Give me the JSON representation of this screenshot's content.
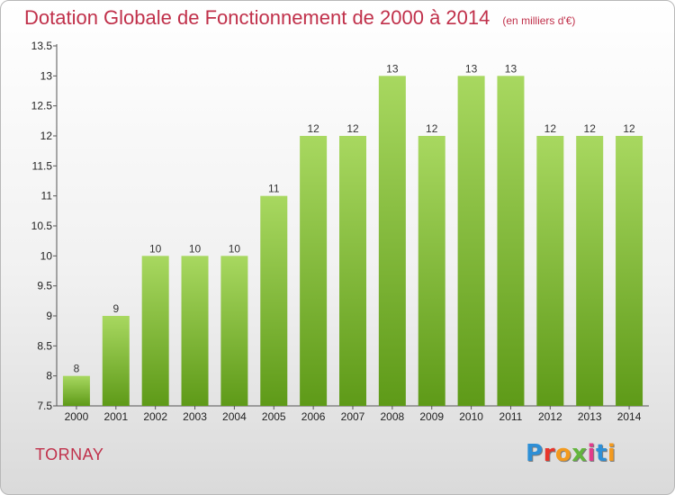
{
  "title": "Dotation Globale de Fonctionnement de 2000 à 2014",
  "subtitle": "(en milliers d'€)",
  "commune": "TORNAY",
  "logo": {
    "text": "Proxiti",
    "colors": [
      "#2e8fd6",
      "#e8352a",
      "#f39a1e",
      "#63b53d",
      "#e23b8c",
      "#2e8fd6",
      "#f39a1e"
    ]
  },
  "colors": {
    "title": "#c0304a",
    "bar_top": "#a8d860",
    "bar_bottom": "#5e9a18"
  },
  "chart_data": {
    "type": "bar",
    "title": "Dotation Globale de Fonctionnement de 2000 à 2014",
    "xlabel": "",
    "ylabel": "",
    "categories": [
      "2000",
      "2001",
      "2002",
      "2003",
      "2004",
      "2005",
      "2006",
      "2007",
      "2008",
      "2009",
      "2010",
      "2011",
      "2012",
      "2013",
      "2014"
    ],
    "values": [
      8,
      9,
      10,
      10,
      10,
      11,
      12,
      12,
      13,
      12,
      13,
      13,
      12,
      12,
      12
    ],
    "ylim": [
      7.5,
      13.5
    ],
    "yticks": [
      "7.5",
      "8",
      "8.5",
      "9",
      "9.5",
      "10",
      "10.5",
      "11",
      "11.5",
      "12",
      "12.5",
      "13",
      "13.5"
    ],
    "grid": false
  }
}
